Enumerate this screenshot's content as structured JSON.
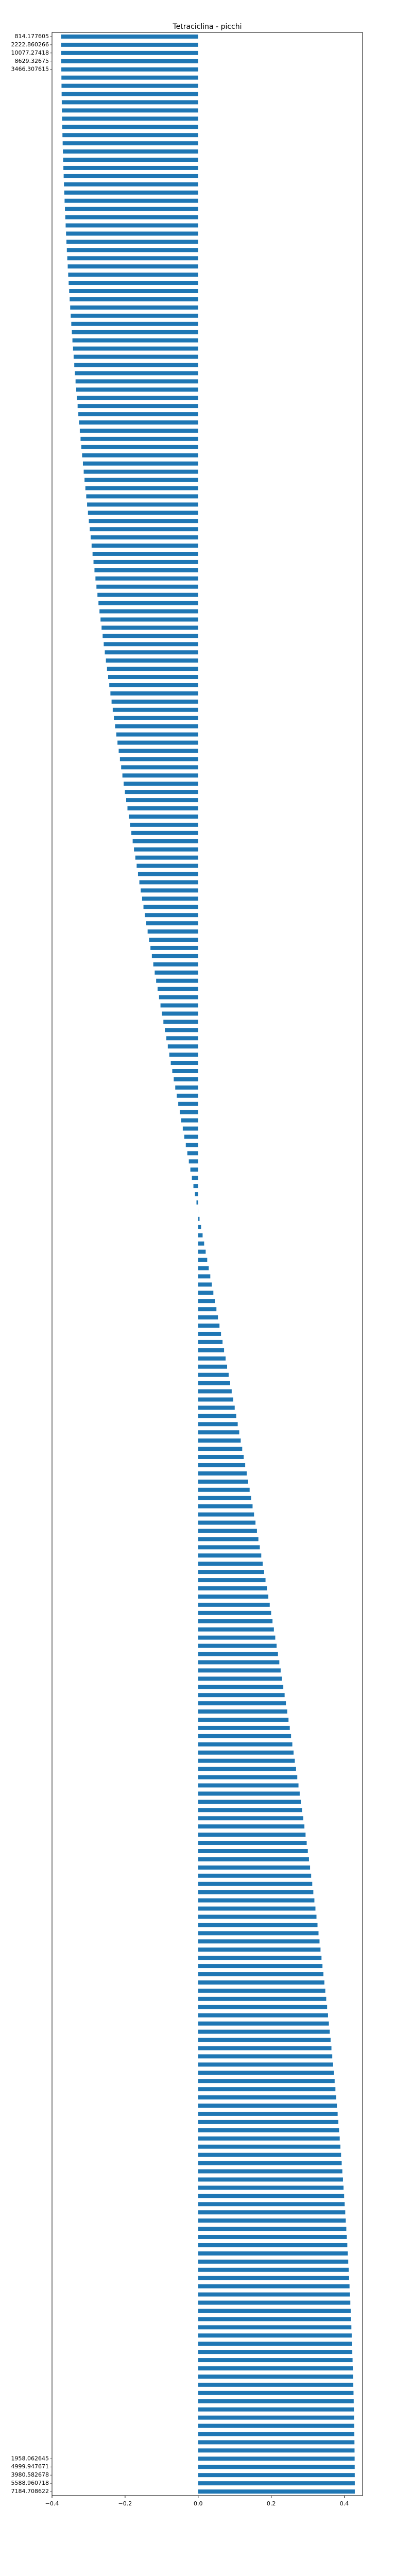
{
  "chart_data": {
    "type": "bar",
    "orientation": "horizontal",
    "title": "Tetraciclina - picchi",
    "xlabel": "",
    "ylabel": "",
    "xlim": [
      -0.4,
      0.45
    ],
    "xticks": [
      -0.4,
      -0.2,
      0.0,
      0.2,
      0.4
    ],
    "xtick_labels": [
      "−0.4",
      "−0.2",
      "0.0",
      "0.2",
      "0.4"
    ],
    "grid": false,
    "bar_color": "#1f77b4",
    "count_bars": 300,
    "min_value": -0.37,
    "max_value": 0.44,
    "categories_top": [
      "814.177605",
      "2222.860266",
      "10077.27418",
      "8629.32675",
      "3466.307615"
    ],
    "categories_bottom": [
      "1958.062645",
      "4999.947671",
      "3980.582678",
      "5588.960718",
      "7184.708622"
    ]
  }
}
